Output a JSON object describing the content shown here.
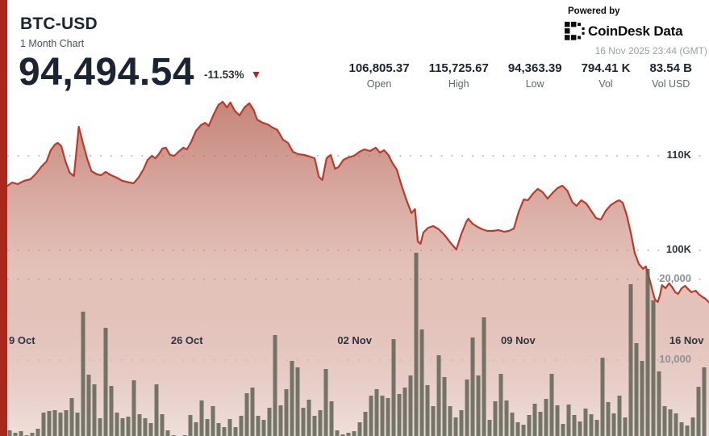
{
  "header": {
    "symbol": "BTC-USD",
    "subtitle": "1 Month Chart",
    "price": "94,494.54",
    "change": "-11.53%"
  },
  "branding": {
    "powered_by": "Powered by",
    "logo_text": "CoinDesk Data",
    "timestamp": "16 Nov 2025 23:44 (GMT)"
  },
  "stats": [
    {
      "value": "106,805.37",
      "label": "Open"
    },
    {
      "value": "115,725.67",
      "label": "High"
    },
    {
      "value": "94,363.39",
      "label": "Low"
    },
    {
      "value": "794.41 K",
      "label": "Vol"
    },
    {
      "value": "83.54 B",
      "label": "Vol USD"
    }
  ],
  "chart_data": {
    "type": "area",
    "title": "BTC-USD 1 Month Chart",
    "x_range_label": "one month ending 16 Nov 2025 23:44 GMT",
    "grid": "dotted horizontal lines",
    "legend": "none",
    "price_axis": {
      "side": "right",
      "unit": "USD",
      "ticks": [
        {
          "label": "110K",
          "value": 110000
        },
        {
          "label": "100K",
          "value": 100000
        }
      ]
    },
    "volume_axis": {
      "side": "right",
      "unit": "BTC",
      "ticks": [
        {
          "label": "20,000",
          "value": 20000
        },
        {
          "label": "10,000",
          "value": 10000
        }
      ]
    },
    "x_ticks": [
      {
        "label": "9 Oct",
        "f": 0.021
      },
      {
        "label": "26 Oct",
        "f": 0.256
      },
      {
        "label": "02 Nov",
        "f": 0.495
      },
      {
        "label": "09 Nov",
        "f": 0.728
      },
      {
        "label": "16 Nov",
        "f": 0.968
      }
    ],
    "colors": {
      "line": "#bf3828",
      "accent_bar": "#a8291b",
      "fill_top": "#a84836",
      "fill_bottom": "#efe0dc",
      "volume_bar": "#5c6053",
      "grid_dot": "#a8a8ab"
    },
    "price_series": {
      "name": "BTC-USD price",
      "unit": "USD",
      "open": 106805.37,
      "high": 115725.67,
      "low": 94363.39,
      "close": 94494.54,
      "points_f_price": [
        [
          0,
          106800
        ],
        [
          0.007,
          107180
        ],
        [
          0.015,
          107010
        ],
        [
          0.024,
          107350
        ],
        [
          0.033,
          107520
        ],
        [
          0.041,
          108120
        ],
        [
          0.049,
          108890
        ],
        [
          0.056,
          109400
        ],
        [
          0.062,
          110600
        ],
        [
          0.068,
          111200
        ],
        [
          0.072,
          111370
        ],
        [
          0.077,
          111030
        ],
        [
          0.083,
          109400
        ],
        [
          0.089,
          108210
        ],
        [
          0.095,
          107860
        ],
        [
          0.102,
          113080
        ],
        [
          0.108,
          111280
        ],
        [
          0.114,
          109660
        ],
        [
          0.12,
          108380
        ],
        [
          0.128,
          108030
        ],
        [
          0.134,
          107950
        ],
        [
          0.14,
          108290
        ],
        [
          0.148,
          107950
        ],
        [
          0.156,
          107690
        ],
        [
          0.164,
          107350
        ],
        [
          0.174,
          107180
        ],
        [
          0.18,
          107090
        ],
        [
          0.187,
          107690
        ],
        [
          0.194,
          108550
        ],
        [
          0.2,
          109570
        ],
        [
          0.206,
          110000
        ],
        [
          0.211,
          109740
        ],
        [
          0.216,
          110170
        ],
        [
          0.221,
          110770
        ],
        [
          0.226,
          110860
        ],
        [
          0.232,
          110090
        ],
        [
          0.238,
          110000
        ],
        [
          0.244,
          110430
        ],
        [
          0.251,
          110860
        ],
        [
          0.256,
          110680
        ],
        [
          0.262,
          111450
        ],
        [
          0.269,
          112650
        ],
        [
          0.276,
          113250
        ],
        [
          0.282,
          113500
        ],
        [
          0.287,
          113160
        ],
        [
          0.294,
          114360
        ],
        [
          0.301,
          115390
        ],
        [
          0.307,
          115726
        ],
        [
          0.313,
          115130
        ],
        [
          0.318,
          115640
        ],
        [
          0.324,
          114790
        ],
        [
          0.331,
          114270
        ],
        [
          0.338,
          115130
        ],
        [
          0.345,
          115560
        ],
        [
          0.351,
          114870
        ],
        [
          0.356,
          113850
        ],
        [
          0.364,
          113500
        ],
        [
          0.371,
          113330
        ],
        [
          0.378,
          112990
        ],
        [
          0.385,
          112740
        ],
        [
          0.393,
          111710
        ],
        [
          0.4,
          111370
        ],
        [
          0.407,
          110430
        ],
        [
          0.415,
          110170
        ],
        [
          0.423,
          110090
        ],
        [
          0.431,
          109920
        ],
        [
          0.438,
          109740
        ],
        [
          0.444,
          107780
        ],
        [
          0.449,
          107440
        ],
        [
          0.455,
          109740
        ],
        [
          0.461,
          110090
        ],
        [
          0.467,
          108630
        ],
        [
          0.472,
          108800
        ],
        [
          0.479,
          109570
        ],
        [
          0.486,
          109830
        ],
        [
          0.494,
          110000
        ],
        [
          0.502,
          110430
        ],
        [
          0.509,
          110680
        ],
        [
          0.517,
          110510
        ],
        [
          0.525,
          110860
        ],
        [
          0.531,
          110340
        ],
        [
          0.537,
          110600
        ],
        [
          0.543,
          110090
        ],
        [
          0.549,
          109230
        ],
        [
          0.555,
          108550
        ],
        [
          0.562,
          106840
        ],
        [
          0.569,
          105300
        ],
        [
          0.576,
          103930
        ],
        [
          0.581,
          104360
        ],
        [
          0.585,
          100940
        ],
        [
          0.589,
          100680
        ],
        [
          0.593,
          101880
        ],
        [
          0.6,
          102390
        ],
        [
          0.607,
          102560
        ],
        [
          0.615,
          102220
        ],
        [
          0.623,
          101620
        ],
        [
          0.631,
          100850
        ],
        [
          0.64,
          100080
        ],
        [
          0.647,
          101710
        ],
        [
          0.654,
          102990
        ],
        [
          0.657,
          103330
        ],
        [
          0.663,
          102820
        ],
        [
          0.67,
          102480
        ],
        [
          0.677,
          102220
        ],
        [
          0.684,
          102050
        ],
        [
          0.692,
          102050
        ],
        [
          0.7,
          102140
        ],
        [
          0.708,
          101970
        ],
        [
          0.715,
          102050
        ],
        [
          0.722,
          102310
        ],
        [
          0.729,
          104100
        ],
        [
          0.736,
          105380
        ],
        [
          0.742,
          105300
        ],
        [
          0.749,
          105980
        ],
        [
          0.756,
          106500
        ],
        [
          0.763,
          106150
        ],
        [
          0.77,
          105470
        ],
        [
          0.777,
          106070
        ],
        [
          0.784,
          106580
        ],
        [
          0.791,
          106840
        ],
        [
          0.798,
          106320
        ],
        [
          0.805,
          105130
        ],
        [
          0.811,
          104700
        ],
        [
          0.818,
          105300
        ],
        [
          0.825,
          104960
        ],
        [
          0.832,
          104190
        ],
        [
          0.839,
          103420
        ],
        [
          0.846,
          103250
        ],
        [
          0.853,
          104190
        ],
        [
          0.86,
          104790
        ],
        [
          0.867,
          105130
        ],
        [
          0.872,
          105300
        ],
        [
          0.877,
          105040
        ],
        [
          0.883,
          103670
        ],
        [
          0.889,
          101710
        ],
        [
          0.894,
          99740
        ],
        [
          0.9,
          98550
        ],
        [
          0.906,
          98030
        ],
        [
          0.91,
          98290
        ],
        [
          0.915,
          97010
        ],
        [
          0.92,
          95560
        ],
        [
          0.923,
          94790
        ],
        [
          0.927,
          94530
        ],
        [
          0.93,
          95210
        ],
        [
          0.933,
          96320
        ],
        [
          0.938,
          95980
        ],
        [
          0.943,
          96500
        ],
        [
          0.947,
          96150
        ],
        [
          0.952,
          95560
        ],
        [
          0.956,
          95380
        ],
        [
          0.961,
          95980
        ],
        [
          0.966,
          96240
        ],
        [
          0.97,
          95900
        ],
        [
          0.975,
          95560
        ],
        [
          0.981,
          95730
        ],
        [
          0.985,
          95380
        ],
        [
          0.991,
          95040
        ],
        [
          0.995,
          94870
        ],
        [
          1,
          94495
        ]
      ]
    },
    "volume_series": {
      "name": "Volume",
      "unit": "BTC per bar",
      "values": [
        1300,
        1000,
        1200,
        700,
        1000,
        1500,
        3500,
        3700,
        3800,
        3500,
        3800,
        5300,
        3500,
        16000,
        8200,
        7000,
        2800,
        14000,
        6800,
        3500,
        2800,
        3000,
        7500,
        3300,
        2800,
        2200,
        7000,
        3300,
        1300,
        700,
        400,
        700,
        3200,
        2300,
        5000,
        2700,
        4300,
        2200,
        1700,
        2700,
        1700,
        3100,
        5900,
        6600,
        3100,
        2600,
        4100,
        13100,
        4400,
        6400,
        9900,
        9100,
        4100,
        5100,
        3100,
        3800,
        8900,
        4900,
        1300,
        800,
        1000,
        1200,
        2300,
        3600,
        5600,
        6400,
        5600,
        5300,
        12600,
        5800,
        6600,
        8100,
        23300,
        13800,
        6900,
        4300,
        10600,
        7900,
        4300,
        2900,
        3800,
        7600,
        12800,
        8100,
        15300,
        2600,
        4900,
        8300,
        5000,
        3500,
        2300,
        2000,
        3200,
        4600,
        3600,
        5200,
        8300,
        4400,
        2100,
        4500,
        3200,
        2400,
        4000,
        3300,
        2600,
        10300,
        4800,
        3400,
        5600,
        2900,
        19400,
        12100,
        9900,
        21300,
        17400,
        8600,
        4300,
        3900,
        3400,
        2300,
        1900,
        2900,
        6700,
        9100
      ]
    }
  }
}
